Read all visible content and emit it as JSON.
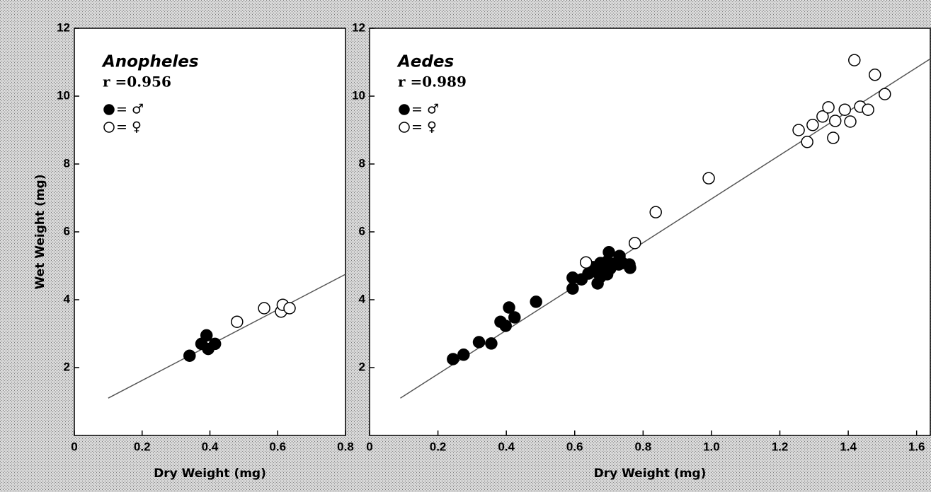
{
  "chart_data": [
    {
      "type": "scatter",
      "title": "Anopheles",
      "annotation": "r =0.956",
      "x_label": "Dry Weight (mg)",
      "y_label": "Wet Weight (mg)",
      "xlim": [
        0,
        0.8
      ],
      "ylim": [
        0,
        12
      ],
      "xticks": [
        0,
        0.2,
        0.4,
        0.6,
        0.8
      ],
      "yticks": [
        2,
        4,
        6,
        8,
        10,
        12
      ],
      "series": [
        {
          "name": "= ♂",
          "color": "#000000",
          "marker": "filled",
          "x": [
            0.34,
            0.375,
            0.39,
            0.395,
            0.415
          ],
          "y": [
            2.35,
            2.7,
            2.95,
            2.55,
            2.7
          ]
        },
        {
          "name": "= ♀",
          "color": "#000000",
          "marker": "open",
          "x": [
            0.48,
            0.56,
            0.61,
            0.615,
            0.635
          ],
          "y": [
            3.35,
            3.75,
            3.65,
            3.85,
            3.75
          ]
        }
      ],
      "fit_line": {
        "x": [
          0.1,
          0.8
        ],
        "y": [
          1.1,
          4.75
        ]
      }
    },
    {
      "type": "scatter",
      "title": "Aedes",
      "annotation": "r =0.989",
      "x_label": "Dry Weight (mg)",
      "xlim": [
        0,
        1.64
      ],
      "ylim": [
        0,
        12
      ],
      "xticks": [
        0,
        0.2,
        0.4,
        0.6,
        0.8,
        {
          "value": 1,
          "label": "1.0"
        },
        1.2,
        1.4,
        1.6
      ],
      "yticks": [
        2,
        4,
        6,
        8,
        10,
        12
      ],
      "series": [
        {
          "name": "= ♂",
          "color": "#000000",
          "marker": "filled",
          "x": [
            0.244,
            0.275,
            0.32,
            0.356,
            0.383,
            0.398,
            0.408,
            0.424,
            0.487,
            0.594,
            0.594,
            0.62,
            0.64,
            0.654,
            0.665,
            0.675,
            0.675,
            0.667,
            0.687,
            0.695,
            0.704,
            0.695,
            0.71,
            0.7,
            0.729,
            0.731,
            0.74,
            0.76,
            0.762
          ],
          "y": [
            2.25,
            2.38,
            2.75,
            2.71,
            3.35,
            3.23,
            3.77,
            3.48,
            3.94,
            4.65,
            4.33,
            4.6,
            4.77,
            4.96,
            4.81,
            5.08,
            4.67,
            4.48,
            4.9,
            5.13,
            4.92,
            4.75,
            5.06,
            5.4,
            5.04,
            5.29,
            5.08,
            5.04,
            4.94
          ]
        },
        {
          "name": "= ♀",
          "color": "#000000",
          "marker": "open",
          "x": [
            0.633,
            0.776,
            0.837,
            0.992,
            1.255,
            1.28,
            1.296,
            1.325,
            1.342,
            1.356,
            1.362,
            1.39,
            1.406,
            1.418,
            1.435,
            1.458,
            1.478,
            1.507
          ],
          "y": [
            5.1,
            5.67,
            6.58,
            7.58,
            9.0,
            8.65,
            9.15,
            9.4,
            9.67,
            8.77,
            9.27,
            9.6,
            9.25,
            11.06,
            9.69,
            9.6,
            10.63,
            10.06
          ]
        }
      ],
      "fit_line": {
        "x": [
          0.09,
          1.64
        ],
        "y": [
          1.1,
          11.1
        ]
      }
    }
  ]
}
